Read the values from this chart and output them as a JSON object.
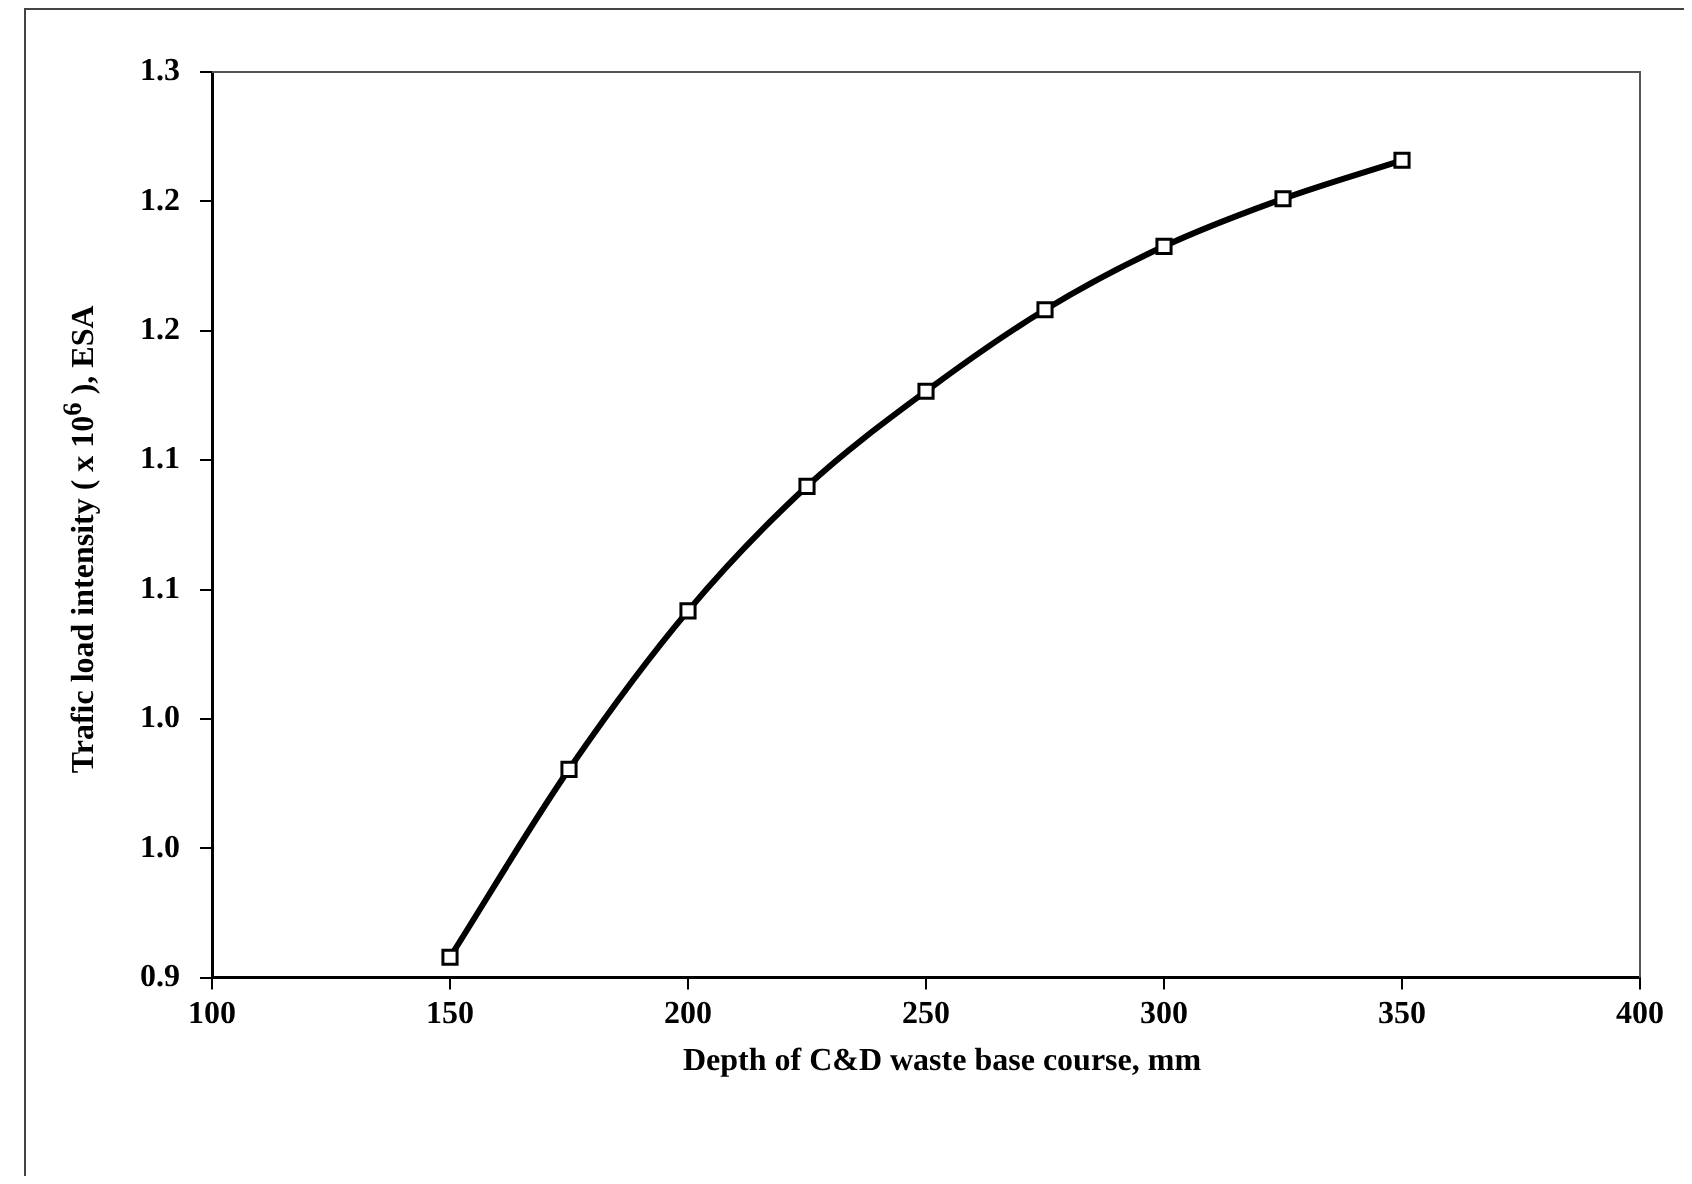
{
  "chart_data": {
    "type": "line",
    "xlabel": "Depth of C&D waste base course, mm",
    "ylabel": "Trafic load intensity ( x 10$^{6}$ ), ESA",
    "x": [
      150,
      175,
      200,
      225,
      250,
      275,
      300,
      325,
      350
    ],
    "series": [
      {
        "color": "#000000",
        "values": [
          0.909,
          0.992,
          1.062,
          1.117,
          1.159,
          1.195,
          1.223,
          1.244,
          1.261
        ]
      }
    ],
    "xlim": [
      100,
      400
    ],
    "xticks": [
      100,
      150,
      200,
      250,
      300,
      350,
      400
    ],
    "ylim": [
      0.9,
      1.3
    ],
    "yticks": [
      {
        "value": 0.9,
        "label": "0.9"
      },
      {
        "value": 0.9571,
        "label": "1.0"
      },
      {
        "value": 1.0143,
        "label": "1.0"
      },
      {
        "value": 1.0714,
        "label": "1.1"
      },
      {
        "value": 1.1286,
        "label": "1.1"
      },
      {
        "value": 1.1857,
        "label": "1.2"
      },
      {
        "value": 1.2429,
        "label": "1.2"
      },
      {
        "value": 1.3,
        "label": "1.3"
      }
    ],
    "grid": false,
    "legend": false,
    "marker": "square",
    "line_style": "solid"
  }
}
